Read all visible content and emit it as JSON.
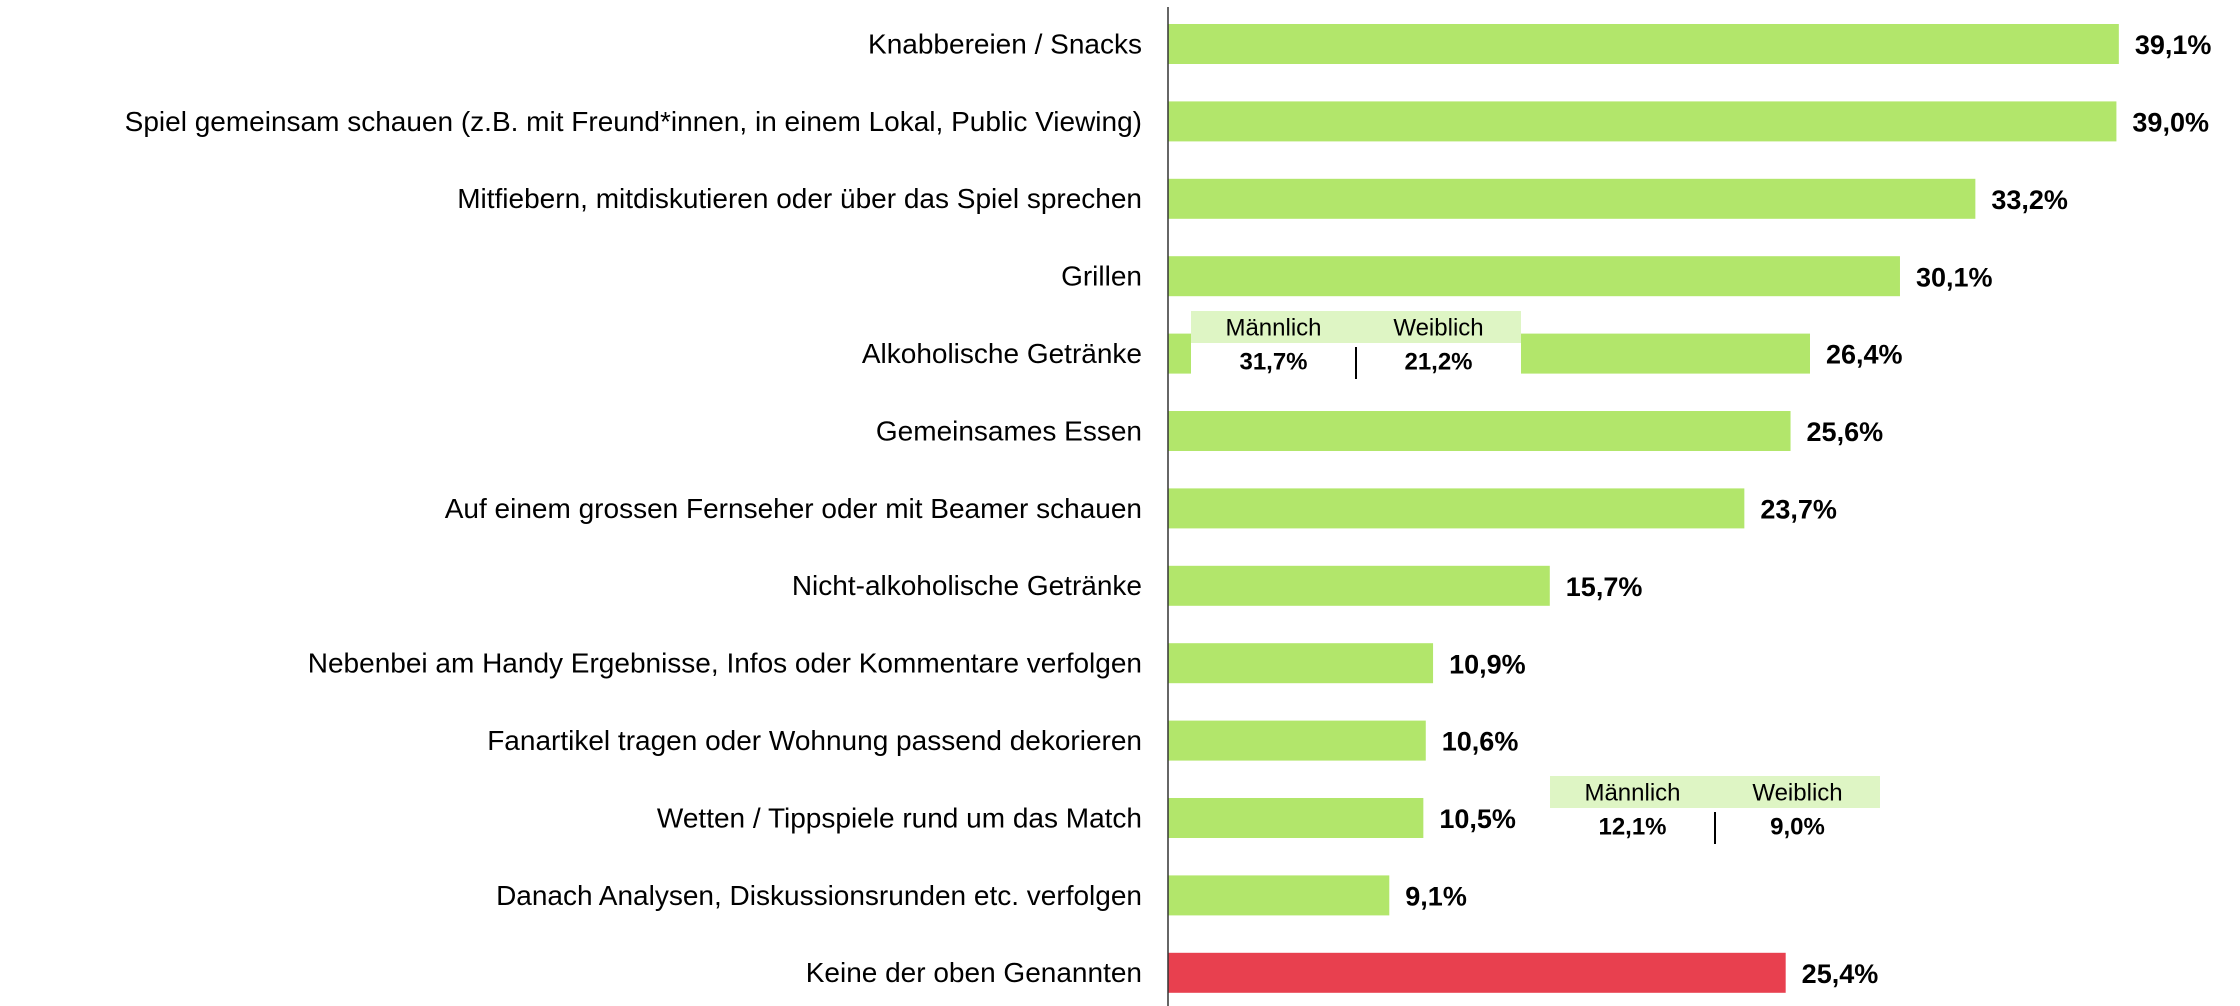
{
  "chart_data": {
    "type": "hbar",
    "categories": [
      "Knabbereien / Snacks",
      "Spiel gemeinsam schauen (z.B. mit Freund*innen, in einem Lokal, Public Viewing)",
      "Mitfiebern, mitdiskutieren oder über das Spiel sprechen",
      "Grillen",
      "Alkoholische Getränke",
      "Gemeinsames Essen",
      "Auf einem grossen Fernseher oder mit Beamer schauen",
      "Nicht-alkoholische Getränke",
      "Nebenbei am Handy Ergebnisse, Infos oder Kommentare verfolgen",
      "Fanartikel tragen oder Wohnung passend dekorieren",
      "Wetten / Tippspiele rund um das Match",
      "Danach Analysen, Diskussionsrunden etc. verfolgen",
      "Keine der oben Genannten"
    ],
    "values": [
      39.1,
      39.0,
      33.2,
      30.1,
      26.4,
      25.6,
      23.7,
      15.7,
      10.9,
      10.6,
      10.5,
      9.1,
      25.4
    ],
    "value_labels": [
      "39,1%",
      "39,0%",
      "33,2%",
      "30,1%",
      "26,4%",
      "25,6%",
      "23,7%",
      "15,7%",
      "10,9%",
      "10,6%",
      "10,5%",
      "9,1%",
      "25,4%"
    ],
    "colors": [
      "#b2e66b",
      "#b2e66b",
      "#b2e66b",
      "#b2e66b",
      "#b2e66b",
      "#b2e66b",
      "#b2e66b",
      "#b2e66b",
      "#b2e66b",
      "#b2e66b",
      "#b2e66b",
      "#b2e66b",
      "#e8404f"
    ],
    "xlim": [
      0,
      44
    ],
    "annotations": [
      {
        "category": "Alkoholische Getränke",
        "labels": [
          "Männlich",
          "Weiblich"
        ],
        "values": [
          31.7,
          21.2
        ],
        "value_labels": [
          "31,7%",
          "21,2%"
        ]
      },
      {
        "category": "Wetten / Tippspiele rund um das Match",
        "labels": [
          "Männlich",
          "Weiblich"
        ],
        "values": [
          12.1,
          9.0
        ],
        "value_labels": [
          "12,1%",
          "9,0%"
        ]
      }
    ]
  }
}
